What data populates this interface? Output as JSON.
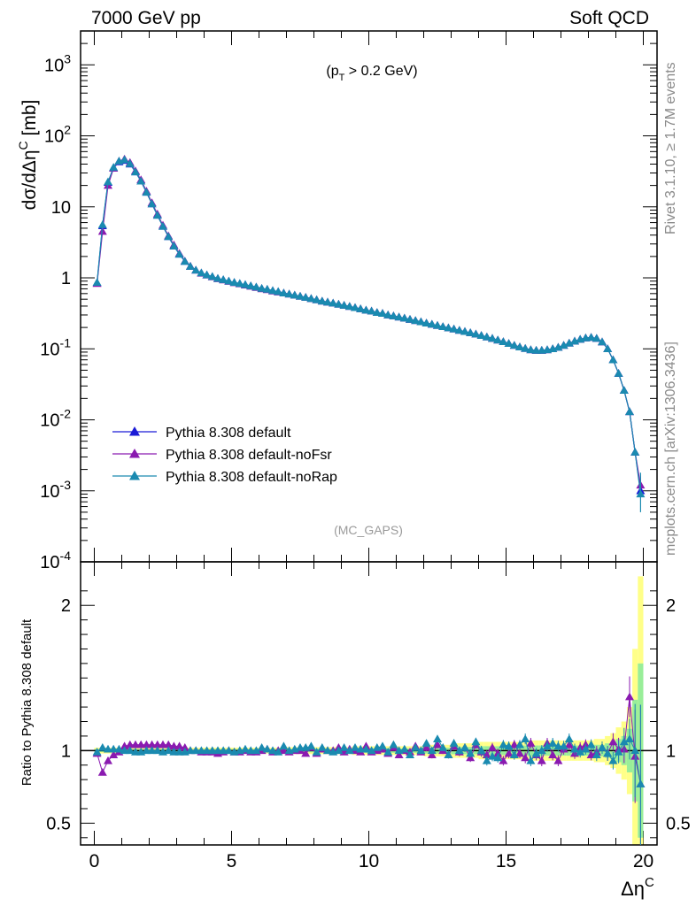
{
  "header": {
    "left": "7000 GeV pp",
    "right": "Soft QCD"
  },
  "side_labels": {
    "rivet": "Rivet 3.1.10, ≥ 1.7M events",
    "mcplots": "mcplots.cern.ch [arXiv:1306.3436]"
  },
  "chart_data": [
    {
      "type": "line",
      "title": "(p_T > 0.2 GeV)",
      "watermark": "(MC_GAPS)",
      "xlabel": "Δη^C",
      "ylabel": "dσ/dΔη^C [mb]",
      "yscale": "log",
      "xlim": [
        -0.5,
        20.5
      ],
      "ylim": [
        0.0001,
        3000
      ],
      "y_tick_labels": [
        "10^-4",
        "10^-3",
        "10^-2",
        "10^-1",
        "1",
        "10",
        "10^2",
        "10^3"
      ],
      "x_tick_labels": [
        "0",
        "5",
        "10",
        "15",
        "20"
      ],
      "legend_position": "bottom-left",
      "x": [
        0.1,
        0.3,
        0.5,
        0.7,
        0.9,
        1.1,
        1.3,
        1.5,
        1.7,
        1.9,
        2.1,
        2.3,
        2.5,
        2.7,
        2.9,
        3.1,
        3.3,
        3.5,
        3.7,
        3.9,
        4.1,
        4.3,
        4.5,
        4.7,
        4.9,
        5.1,
        5.3,
        5.5,
        5.7,
        5.9,
        6.1,
        6.3,
        6.5,
        6.7,
        6.9,
        7.1,
        7.3,
        7.5,
        7.7,
        7.9,
        8.1,
        8.3,
        8.5,
        8.7,
        8.9,
        9.1,
        9.3,
        9.5,
        9.7,
        9.9,
        10.1,
        10.3,
        10.5,
        10.7,
        10.9,
        11.1,
        11.3,
        11.5,
        11.7,
        11.9,
        12.1,
        12.3,
        12.5,
        12.7,
        12.9,
        13.1,
        13.3,
        13.5,
        13.7,
        13.9,
        14.1,
        14.3,
        14.5,
        14.7,
        14.9,
        15.1,
        15.3,
        15.5,
        15.7,
        15.9,
        16.1,
        16.3,
        16.5,
        16.7,
        16.9,
        17.1,
        17.3,
        17.5,
        17.7,
        17.9,
        18.1,
        18.3,
        18.5,
        18.7,
        18.9,
        19.1,
        19.3,
        19.5,
        19.7,
        19.9
      ],
      "series": [
        {
          "name": "Pythia 8.308 default",
          "color": "#1a1ad6",
          "values": [
            0.85,
            5.4,
            22,
            35,
            43,
            45,
            40,
            31,
            23,
            16,
            11,
            7.6,
            5.3,
            3.8,
            2.8,
            2.15,
            1.7,
            1.45,
            1.28,
            1.17,
            1.1,
            1.04,
            0.98,
            0.94,
            0.9,
            0.86,
            0.83,
            0.8,
            0.77,
            0.74,
            0.71,
            0.69,
            0.66,
            0.64,
            0.61,
            0.59,
            0.57,
            0.55,
            0.53,
            0.51,
            0.49,
            0.47,
            0.455,
            0.44,
            0.425,
            0.41,
            0.395,
            0.38,
            0.365,
            0.35,
            0.34,
            0.325,
            0.315,
            0.3,
            0.29,
            0.28,
            0.27,
            0.26,
            0.25,
            0.24,
            0.23,
            0.222,
            0.213,
            0.205,
            0.197,
            0.19,
            0.182,
            0.175,
            0.168,
            0.161,
            0.154,
            0.147,
            0.14,
            0.133,
            0.126,
            0.119,
            0.112,
            0.106,
            0.101,
            0.097,
            0.095,
            0.095,
            0.097,
            0.1,
            0.105,
            0.112,
            0.12,
            0.128,
            0.136,
            0.142,
            0.145,
            0.14,
            0.125,
            0.1,
            0.07,
            0.045,
            0.026,
            0.013,
            0.0035,
            0.001
          ]
        },
        {
          "name": "Pythia 8.308 default-noFsr",
          "color": "#8a1ab0",
          "values": [
            0.83,
            4.5,
            20,
            35,
            44,
            47,
            42,
            32,
            24,
            16.6,
            11.4,
            7.9,
            5.5,
            3.9,
            2.9,
            2.2,
            1.72,
            1.46,
            1.28,
            1.16,
            1.09,
            1.03,
            0.97,
            0.93,
            0.89,
            0.85,
            0.82,
            0.79,
            0.76,
            0.73,
            0.7,
            0.68,
            0.65,
            0.63,
            0.61,
            0.59,
            0.57,
            0.55,
            0.53,
            0.51,
            0.49,
            0.47,
            0.455,
            0.44,
            0.425,
            0.41,
            0.395,
            0.38,
            0.365,
            0.35,
            0.34,
            0.325,
            0.315,
            0.3,
            0.29,
            0.28,
            0.27,
            0.26,
            0.25,
            0.24,
            0.23,
            0.222,
            0.213,
            0.205,
            0.197,
            0.19,
            0.182,
            0.175,
            0.168,
            0.161,
            0.154,
            0.147,
            0.14,
            0.133,
            0.126,
            0.119,
            0.112,
            0.106,
            0.101,
            0.097,
            0.095,
            0.095,
            0.097,
            0.1,
            0.105,
            0.112,
            0.12,
            0.128,
            0.136,
            0.142,
            0.145,
            0.14,
            0.125,
            0.1,
            0.07,
            0.045,
            0.026,
            0.013,
            0.0035,
            0.0012
          ]
        },
        {
          "name": "Pythia 8.308 default-noRap",
          "color": "#1a8ab0",
          "values": [
            0.86,
            5.6,
            22.5,
            36,
            44,
            46,
            40.5,
            31,
            23,
            16,
            11,
            7.6,
            5.3,
            3.8,
            2.8,
            2.15,
            1.7,
            1.45,
            1.28,
            1.17,
            1.1,
            1.04,
            0.98,
            0.94,
            0.9,
            0.86,
            0.83,
            0.8,
            0.77,
            0.74,
            0.71,
            0.69,
            0.66,
            0.64,
            0.61,
            0.59,
            0.57,
            0.55,
            0.53,
            0.51,
            0.49,
            0.47,
            0.455,
            0.44,
            0.425,
            0.41,
            0.395,
            0.38,
            0.365,
            0.35,
            0.34,
            0.325,
            0.315,
            0.3,
            0.29,
            0.28,
            0.27,
            0.26,
            0.25,
            0.24,
            0.23,
            0.222,
            0.213,
            0.205,
            0.197,
            0.19,
            0.182,
            0.175,
            0.168,
            0.161,
            0.154,
            0.147,
            0.14,
            0.133,
            0.126,
            0.119,
            0.112,
            0.106,
            0.101,
            0.097,
            0.095,
            0.095,
            0.097,
            0.1,
            0.105,
            0.112,
            0.12,
            0.128,
            0.136,
            0.142,
            0.145,
            0.14,
            0.125,
            0.1,
            0.07,
            0.045,
            0.026,
            0.013,
            0.0035,
            0.0009
          ]
        }
      ]
    },
    {
      "type": "line",
      "ylabel": "Ratio to Pythia 8.308 default",
      "xlabel": "Δη^C",
      "xlim": [
        -0.5,
        20.5
      ],
      "ylim": [
        0.35,
        2.3
      ],
      "y_tick_labels": [
        "0.5",
        "1",
        "2"
      ],
      "x_tick_labels": [
        "0",
        "5",
        "10",
        "15",
        "20"
      ],
      "band": {
        "inner_color": "#99ee99",
        "outer_color": "#ffff88",
        "half_width": [
          0.01,
          0.01,
          0.01,
          0.01,
          0.01,
          0.01,
          0.01,
          0.01,
          0.01,
          0.01,
          0.01,
          0.01,
          0.01,
          0.01,
          0.01,
          0.01,
          0.01,
          0.01,
          0.01,
          0.01,
          0.01,
          0.01,
          0.01,
          0.01,
          0.01,
          0.01,
          0.01,
          0.01,
          0.01,
          0.01,
          0.01,
          0.01,
          0.01,
          0.01,
          0.01,
          0.012,
          0.012,
          0.012,
          0.012,
          0.012,
          0.012,
          0.012,
          0.012,
          0.012,
          0.012,
          0.012,
          0.012,
          0.015,
          0.015,
          0.015,
          0.015,
          0.015,
          0.015,
          0.015,
          0.015,
          0.015,
          0.015,
          0.015,
          0.015,
          0.015,
          0.02,
          0.02,
          0.02,
          0.02,
          0.02,
          0.025,
          0.025,
          0.025,
          0.025,
          0.025,
          0.03,
          0.03,
          0.03,
          0.03,
          0.03,
          0.03,
          0.03,
          0.03,
          0.035,
          0.035,
          0.035,
          0.035,
          0.035,
          0.035,
          0.035,
          0.035,
          0.035,
          0.035,
          0.035,
          0.035,
          0.035,
          0.04,
          0.04,
          0.05,
          0.06,
          0.08,
          0.1,
          0.15,
          0.35,
          0.6
        ]
      },
      "series": [
        {
          "name": "Pythia 8.308 default",
          "color": "#1a1ad6",
          "values": [
            1,
            1,
            1,
            1,
            1,
            1,
            1,
            1,
            1,
            1,
            1,
            1,
            1,
            1,
            1,
            1,
            1,
            1,
            1,
            1,
            1,
            1,
            1,
            1,
            1,
            1,
            1,
            1,
            1,
            1,
            1,
            1,
            1,
            1,
            1,
            1,
            1,
            1,
            1,
            1,
            1,
            1,
            1,
            1,
            1,
            1,
            1,
            1,
            1,
            1,
            1,
            1,
            1,
            1,
            1,
            1,
            1,
            1,
            1,
            1,
            1,
            1,
            1,
            1,
            1,
            1,
            1,
            1,
            1,
            1,
            1,
            1,
            1,
            1,
            1,
            1,
            1,
            1,
            1,
            1,
            1,
            1,
            1,
            1,
            1,
            1,
            1,
            1,
            1,
            1,
            1,
            1,
            1,
            1,
            1,
            1,
            1,
            1,
            1,
            1
          ]
        },
        {
          "name": "Pythia 8.308 default-noFsr",
          "color": "#8a1ab0",
          "values": [
            0.98,
            0.85,
            0.93,
            0.97,
            0.99,
            1.03,
            1.04,
            1.04,
            1.04,
            1.04,
            1.04,
            1.04,
            1.04,
            1.04,
            1.03,
            1.03,
            1.02,
            1.0,
            1.0,
            0.99,
            0.99,
            0.99,
            0.98,
            0.99,
            1.0,
            0.99,
            0.99,
            1.0,
            0.99,
            0.99,
            1.0,
            1.01,
            0.99,
            1.0,
            1.0,
            0.99,
            1.0,
            1.0,
            0.98,
            1.02,
            0.98,
            1.01,
            1.0,
            1.0,
            1.02,
            0.99,
            1.01,
            1.0,
            0.99,
            1.03,
            0.99,
            1.0,
            1.01,
            0.98,
            1.02,
            0.97,
            1.0,
            0.99,
            1.03,
            0.99,
            1.02,
            0.97,
            1.04,
            1.0,
            0.97,
            1.03,
            0.99,
            1.02,
            0.95,
            1.04,
            0.99,
            0.97,
            1.02,
            0.98,
            0.93,
            0.98,
            1.04,
            0.98,
            0.95,
            1.05,
            0.97,
            0.93,
            1.05,
            0.97,
            0.93,
            1.01,
            1.04,
            0.98,
            1.02,
            1.04,
            0.97,
            0.99,
            1.02,
            0.98,
            1.06,
            1.01,
            1.01,
            1.37,
            0.96,
            0.77
          ]
        },
        {
          "name": "Pythia 8.308 default-noRap",
          "color": "#1a8ab0",
          "values": [
            0.99,
            1.02,
            1.01,
            1.01,
            1.01,
            1.0,
            1.0,
            0.99,
            0.99,
            1.0,
            1.0,
            1.0,
            0.99,
            1.0,
            0.99,
            0.99,
            0.99,
            1.0,
            1.0,
            1.0,
            1.0,
            1.0,
            1.0,
            1.0,
            1.0,
            0.99,
            1.0,
            1.01,
            1.0,
            1.0,
            1.02,
            1.01,
            1.0,
            0.99,
            1.03,
            1.0,
            1.01,
            1.02,
            1.02,
            1.03,
            0.99,
            1.02,
            1.0,
            0.99,
            1.0,
            1.02,
            1.0,
            1.02,
            1.01,
            1.01,
            1.0,
            1.02,
            1.03,
            0.99,
            1.04,
            1.0,
            1.01,
            0.97,
            1.02,
            1.0,
            1.05,
            1.0,
            1.08,
            1.02,
            0.97,
            1.05,
            1.0,
            1.02,
            0.98,
            1.06,
            1.0,
            0.93,
            0.96,
            0.95,
            1.04,
            1.03,
            0.97,
            1.04,
            1.08,
            0.93,
            0.98,
            1.0,
            1.03,
            1.05,
            1.03,
            1.03,
            1.08,
            1.01,
            0.99,
            1.01,
            1.04,
            0.97,
            1.02,
            0.98,
            0.93,
            0.99,
            1.06,
            1.08,
            1.0,
            0.77
          ]
        }
      ]
    }
  ]
}
